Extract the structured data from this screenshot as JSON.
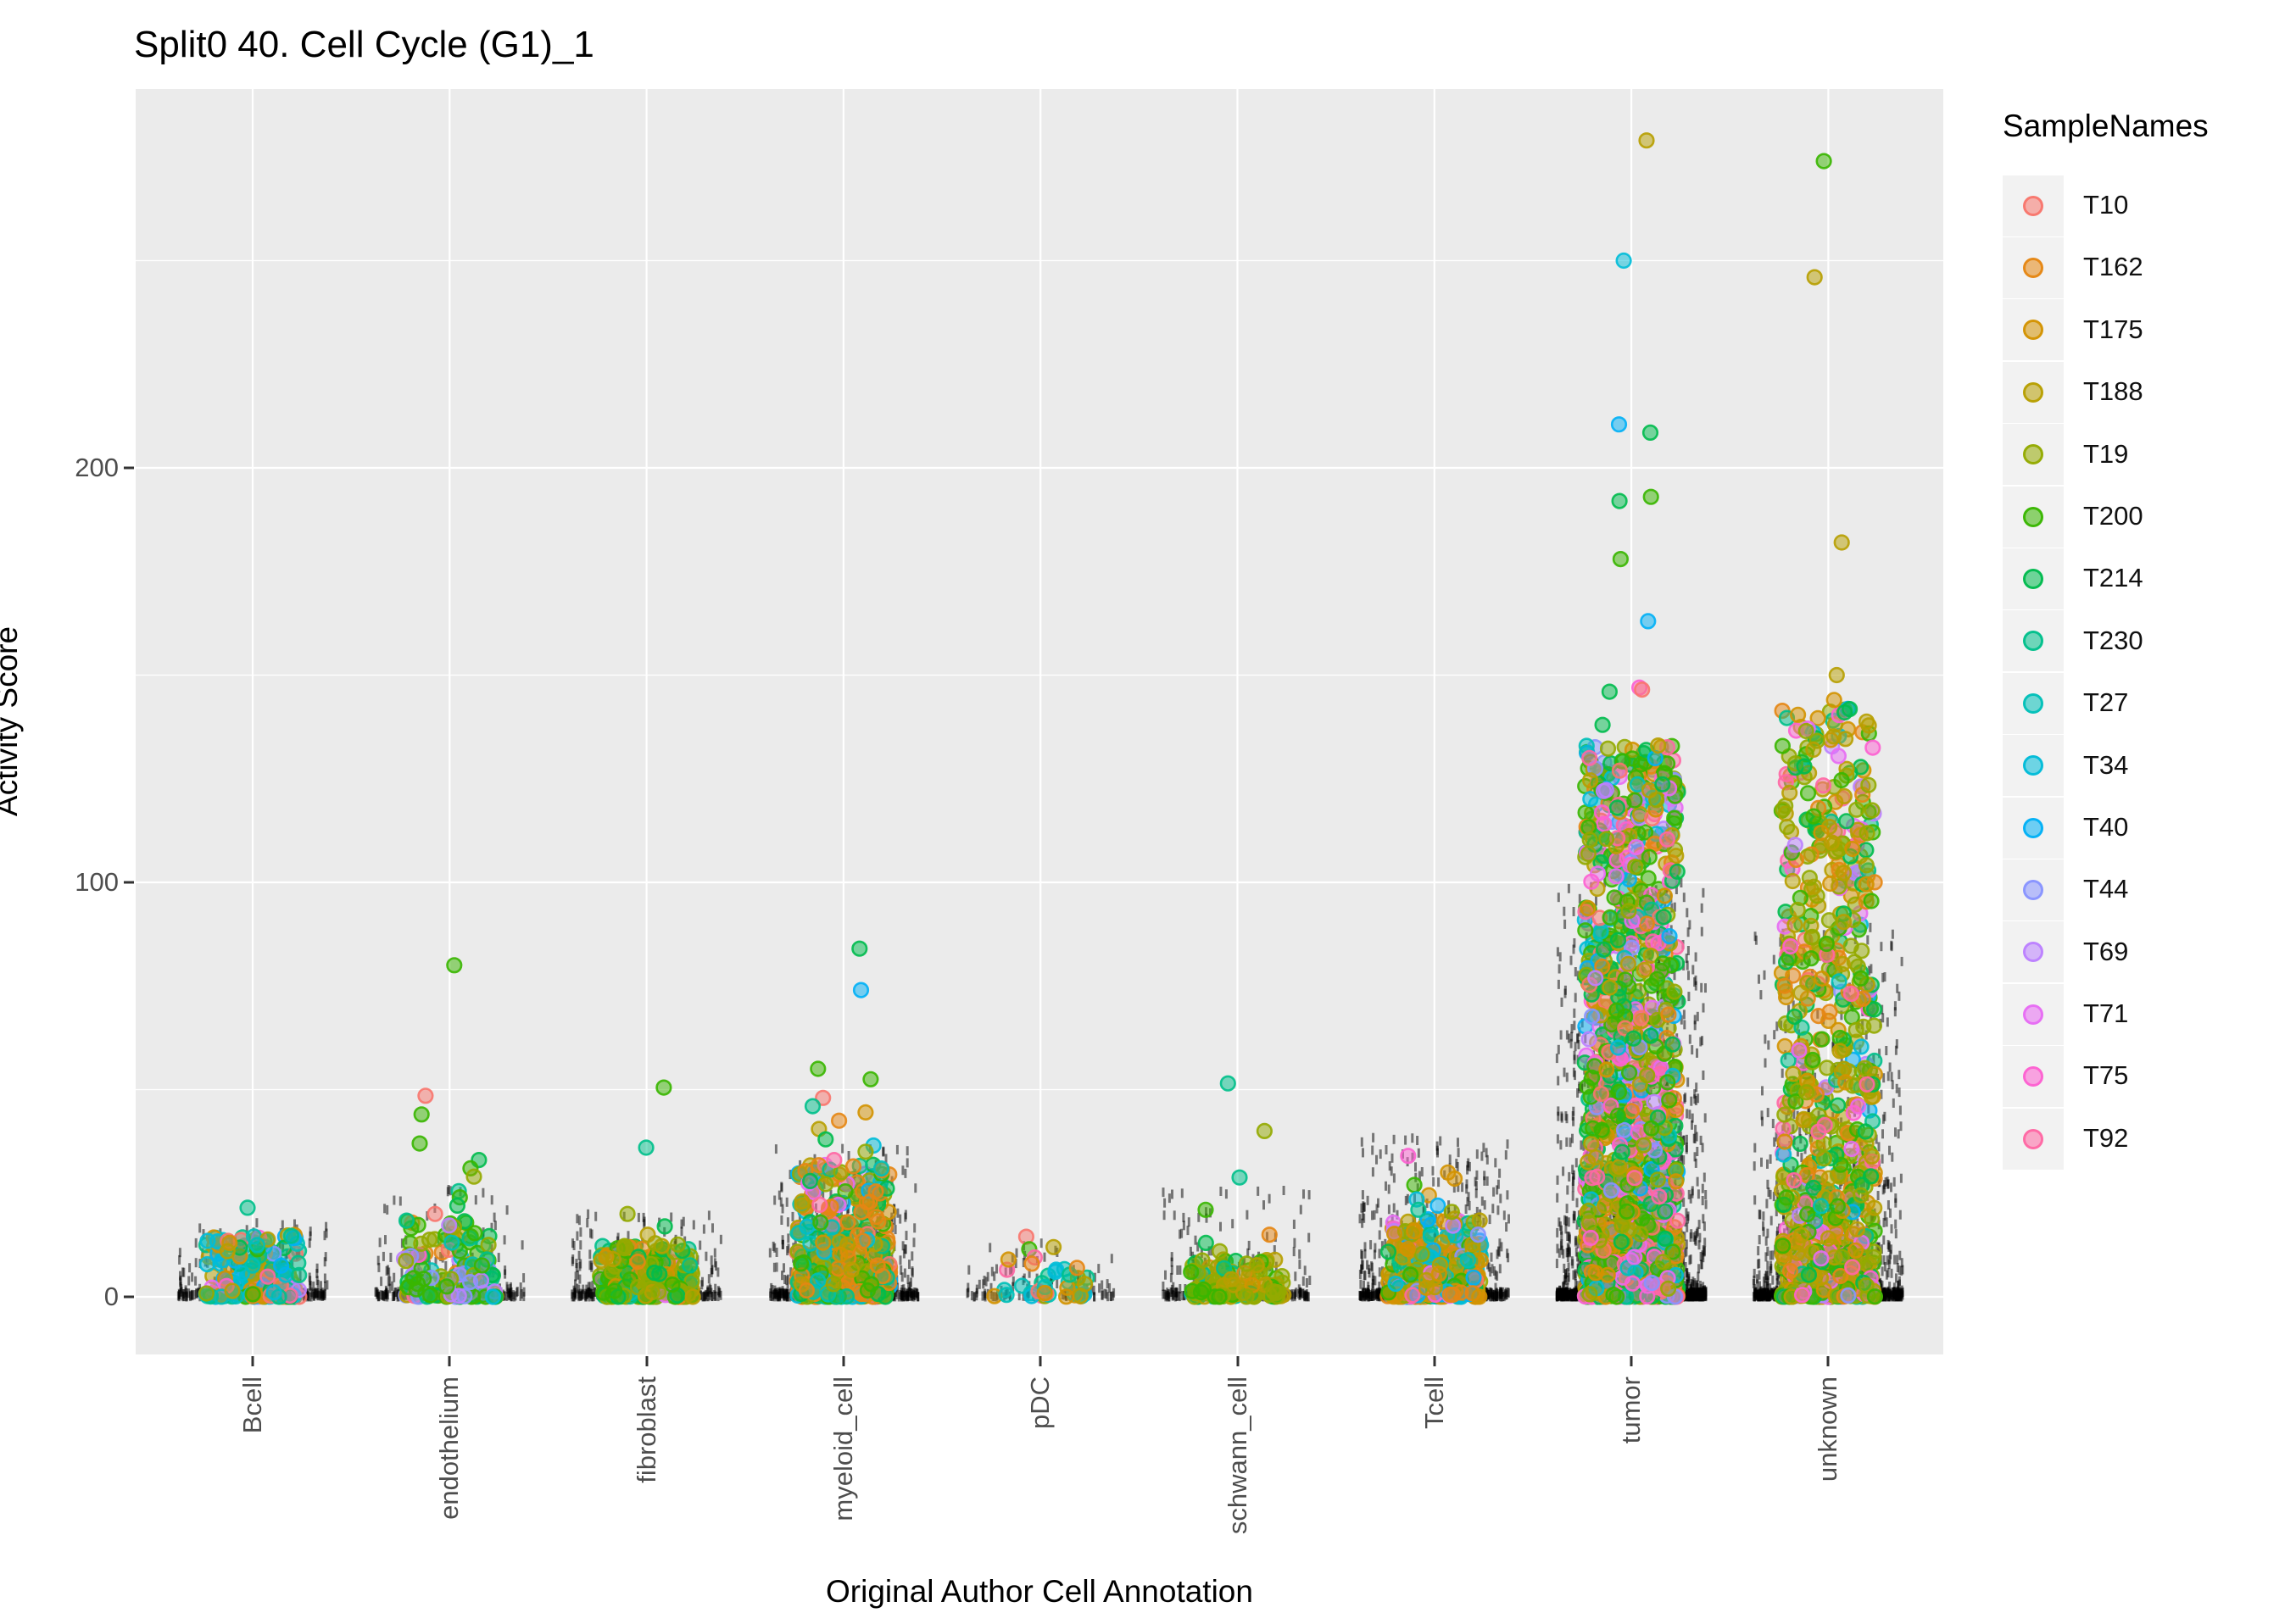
{
  "title": "Split0 40. Cell Cycle (G1)_1",
  "axes": {
    "x_title": "Original Author Cell Annotation",
    "y_title": "Activity Score",
    "y_major_ticks": [
      0,
      100,
      200
    ],
    "y_minor_ticks": [
      50,
      150,
      250
    ],
    "categories": [
      "Bcell",
      "endothelium",
      "fibroblast",
      "myeloid_cell",
      "pDC",
      "schwann_cell",
      "Tcell",
      "tumor",
      "unknown"
    ]
  },
  "legend": {
    "title": "SampleNames",
    "samples": [
      {
        "name": "T10",
        "color": "#F8766D"
      },
      {
        "name": "T162",
        "color": "#E68613"
      },
      {
        "name": "T175",
        "color": "#D39200"
      },
      {
        "name": "T188",
        "color": "#B79F00"
      },
      {
        "name": "T19",
        "color": "#93AA00"
      },
      {
        "name": "T200",
        "color": "#39B600"
      },
      {
        "name": "T214",
        "color": "#00BB4E"
      },
      {
        "name": "T230",
        "color": "#00C08B"
      },
      {
        "name": "T27",
        "color": "#00C0B8"
      },
      {
        "name": "T34",
        "color": "#00BCD8"
      },
      {
        "name": "T40",
        "color": "#00B0F6"
      },
      {
        "name": "T44",
        "color": "#8893FF"
      },
      {
        "name": "T69",
        "color": "#BC81FF"
      },
      {
        "name": "T71",
        "color": "#E76BF3"
      },
      {
        "name": "T75",
        "color": "#FD61D1"
      },
      {
        "name": "T92",
        "color": "#FF67A4"
      }
    ]
  },
  "chart_data": {
    "type": "scatter",
    "subtype": "jittered-strip-plot",
    "title": "Split0 40. Cell Cycle (G1)_1",
    "xlabel": "Original Author Cell Annotation",
    "ylabel": "Activity Score",
    "ylim": [
      -14,
      291
    ],
    "grid": {
      "major": [
        0,
        100,
        200
      ],
      "minor": [
        50,
        150,
        250
      ]
    },
    "legend_position": "right",
    "panel_background": "#EBEBEB",
    "gridline_color": "#FFFFFF",
    "point_style": {
      "fill_opacity": 0.5,
      "stroke_opacity": 0.9,
      "radius_px": 8.3
    },
    "rug_style": {
      "color": "#000000",
      "opacity": 0.5,
      "dash_w": 3,
      "dash_h": 11
    },
    "categories": [
      "Bcell",
      "endothelium",
      "fibroblast",
      "myeloid_cell",
      "pDC",
      "schwann_cell",
      "Tcell",
      "tumor",
      "unknown"
    ],
    "groups": [
      {
        "category": "Bcell",
        "n_points": 220,
        "core_max": 15,
        "density_power": 2.2,
        "sample_weights": {
          "T27": 14,
          "T34": 12,
          "T40": 12,
          "T230": 12,
          "T175": 10,
          "T188": 9,
          "T10": 6,
          "T19": 5,
          "T214": 5,
          "T200": 4,
          "T44": 3,
          "T92": 3,
          "T75": 2,
          "T162": 2,
          "T69": 1,
          "T71": 1
        },
        "outliers": [
          {
            "y": 21.5,
            "sample": "T230"
          },
          {
            "y": 13.5,
            "sample": "T10"
          },
          {
            "y": 13,
            "sample": "T175"
          },
          {
            "y": 12.5,
            "sample": "T27"
          },
          {
            "y": 11,
            "sample": "T188"
          }
        ],
        "rug": {
          "n": 320,
          "max": 18,
          "power": 3
        }
      },
      {
        "category": "endothelium",
        "n_points": 150,
        "core_max": 20,
        "density_power": 2.0,
        "sample_weights": {
          "T200": 30,
          "T214": 15,
          "T19": 12,
          "T230": 8,
          "T69": 8,
          "T188": 7,
          "T44": 4,
          "T162": 4,
          "T10": 4,
          "T27": 3,
          "T34": 2,
          "T75": 1,
          "T92": 1,
          "T71": 1
        },
        "outliers": [
          {
            "y": 80,
            "sample": "T200"
          },
          {
            "y": 48.5,
            "sample": "T10"
          },
          {
            "y": 44,
            "sample": "T200"
          },
          {
            "y": 37,
            "sample": "T200"
          },
          {
            "y": 33,
            "sample": "T214"
          },
          {
            "y": 31,
            "sample": "T200"
          },
          {
            "y": 29,
            "sample": "T19"
          },
          {
            "y": 25.5,
            "sample": "T230"
          },
          {
            "y": 24,
            "sample": "T200"
          },
          {
            "y": 22,
            "sample": "T214"
          },
          {
            "y": 20,
            "sample": "T10"
          }
        ],
        "rug": {
          "n": 230,
          "max": 26,
          "power": 3
        }
      },
      {
        "category": "fibroblast",
        "n_points": 260,
        "core_max": 13,
        "density_power": 2.2,
        "sample_weights": {
          "T19": 34,
          "T188": 20,
          "T200": 15,
          "T214": 10,
          "T230": 8,
          "T162": 4,
          "T175": 4,
          "T27": 2,
          "T92": 1,
          "T69": 1,
          "T71": 1
        },
        "outliers": [
          {
            "y": 50.5,
            "sample": "T200"
          },
          {
            "y": 36,
            "sample": "T230"
          },
          {
            "y": 20,
            "sample": "T19"
          },
          {
            "y": 17,
            "sample": "T214"
          },
          {
            "y": 15,
            "sample": "T188"
          }
        ],
        "rug": {
          "n": 330,
          "max": 20,
          "power": 3
        }
      },
      {
        "category": "myeloid_cell",
        "n_points": 430,
        "core_max": 32,
        "density_power": 2.0,
        "sample_weights": {
          "T162": 27,
          "T19": 12,
          "T200": 12,
          "T188": 10,
          "T175": 8,
          "T230": 7,
          "T214": 6,
          "T27": 5,
          "T34": 4,
          "T40": 3,
          "T10": 3,
          "T92": 2,
          "T71": 1
        },
        "outliers": [
          {
            "y": 84,
            "sample": "T214"
          },
          {
            "y": 74,
            "sample": "T40"
          },
          {
            "y": 55,
            "sample": "T200"
          },
          {
            "y": 52.5,
            "sample": "T200"
          },
          {
            "y": 48,
            "sample": "T10"
          },
          {
            "y": 46,
            "sample": "T230"
          },
          {
            "y": 44.5,
            "sample": "T175"
          },
          {
            "y": 42.5,
            "sample": "T162"
          },
          {
            "y": 40.5,
            "sample": "T188"
          },
          {
            "y": 38,
            "sample": "T214"
          },
          {
            "y": 36.5,
            "sample": "T34"
          },
          {
            "y": 35,
            "sample": "T19"
          },
          {
            "y": 33,
            "sample": "T92"
          }
        ],
        "rug": {
          "n": 600,
          "max": 36,
          "power": 3
        }
      },
      {
        "category": "pDC",
        "n_points": 34,
        "core_max": 7,
        "density_power": 2.0,
        "sample_weights": {
          "T27": 20,
          "T230": 15,
          "T34": 12,
          "T19": 10,
          "T188": 10,
          "T175": 8,
          "T162": 8,
          "T200": 7,
          "T10": 5,
          "T92": 5
        },
        "outliers": [
          {
            "y": 14.5,
            "sample": "T10"
          },
          {
            "y": 12,
            "sample": "T188"
          },
          {
            "y": 11.5,
            "sample": "T200"
          },
          {
            "y": 9.5,
            "sample": "T92"
          },
          {
            "y": 9,
            "sample": "T175"
          },
          {
            "y": 8,
            "sample": "T162"
          }
        ],
        "rug": {
          "n": 130,
          "max": 13,
          "power": 3
        }
      },
      {
        "category": "schwann_cell",
        "n_points": 130,
        "core_max": 9,
        "density_power": 2.2,
        "sample_weights": {
          "T19": 40,
          "T188": 20,
          "T200": 18,
          "T214": 8,
          "T230": 6,
          "T162": 4,
          "T175": 2,
          "T27": 2
        },
        "outliers": [
          {
            "y": 51.5,
            "sample": "T230"
          },
          {
            "y": 40,
            "sample": "T19"
          },
          {
            "y": 28.8,
            "sample": "T230"
          },
          {
            "y": 21,
            "sample": "T200"
          },
          {
            "y": 15,
            "sample": "T162"
          },
          {
            "y": 13,
            "sample": "T214"
          },
          {
            "y": 11,
            "sample": "T19"
          }
        ],
        "rug": {
          "n": 300,
          "max": 26,
          "power": 3
        }
      },
      {
        "category": "Tcell",
        "n_points": 330,
        "core_max": 19,
        "density_power": 2.0,
        "sample_weights": {
          "T175": 20,
          "T188": 17,
          "T162": 11,
          "T27": 10,
          "T230": 8,
          "T34": 7,
          "T40": 6,
          "T19": 5,
          "T200": 4,
          "T214": 3,
          "T69": 2,
          "T71": 2,
          "T75": 2,
          "T92": 2,
          "T44": 2,
          "T10": 2
        },
        "outliers": [
          {
            "y": 34,
            "sample": "T75"
          },
          {
            "y": 30,
            "sample": "T175"
          },
          {
            "y": 28.5,
            "sample": "T175"
          },
          {
            "y": 27,
            "sample": "T200"
          },
          {
            "y": 24.5,
            "sample": "T175"
          },
          {
            "y": 23.5,
            "sample": "T34"
          },
          {
            "y": 22,
            "sample": "T40"
          },
          {
            "y": 21,
            "sample": "T230"
          },
          {
            "y": 20.5,
            "sample": "T19"
          }
        ],
        "rug": {
          "n": 800,
          "max": 40,
          "power": 3.2
        }
      },
      {
        "category": "tumor",
        "n_points": 1350,
        "core_max": 133,
        "density_power": 2.1,
        "sample_weights": {
          "T200": 19,
          "T214": 13,
          "T19": 10,
          "T188": 10,
          "T92": 8,
          "T75": 7,
          "T162": 6,
          "T175": 6,
          "T71": 4,
          "T69": 4,
          "T44": 4,
          "T34": 3,
          "T40": 3,
          "T10": 3,
          "T230": 2,
          "T27": 2
        },
        "outliers": [
          {
            "y": 279,
            "sample": "T188"
          },
          {
            "y": 250,
            "sample": "T34"
          },
          {
            "y": 210.5,
            "sample": "T40"
          },
          {
            "y": 208.5,
            "sample": "T214"
          },
          {
            "y": 193,
            "sample": "T200"
          },
          {
            "y": 192,
            "sample": "T214"
          },
          {
            "y": 178,
            "sample": "T200"
          },
          {
            "y": 163,
            "sample": "T40"
          },
          {
            "y": 147,
            "sample": "T75"
          },
          {
            "y": 146.5,
            "sample": "T10"
          },
          {
            "y": 146,
            "sample": "T214"
          },
          {
            "y": 138,
            "sample": "T214"
          },
          {
            "y": 133,
            "sample": "T188"
          }
        ],
        "rug": {
          "n": 2200,
          "max": 100,
          "power": 3.5
        }
      },
      {
        "category": "unknown",
        "n_points": 780,
        "core_max": 142,
        "density_power": 2.1,
        "sample_weights": {
          "T19": 20,
          "T188": 17,
          "T200": 16,
          "T214": 12,
          "T162": 9,
          "T175": 8,
          "T230": 4,
          "T92": 4,
          "T75": 4,
          "T71": 3,
          "T69": 2,
          "T44": 1,
          "T34": 1,
          "T27": 1,
          "T40": 1,
          "T10": 1
        },
        "outliers": [
          {
            "y": 274,
            "sample": "T200"
          },
          {
            "y": 246,
            "sample": "T188"
          },
          {
            "y": 182,
            "sample": "T188"
          },
          {
            "y": 150,
            "sample": "T188"
          },
          {
            "y": 144,
            "sample": "T175"
          },
          {
            "y": 141,
            "sample": "T214"
          },
          {
            "y": 132,
            "sample": "T188"
          },
          {
            "y": 128,
            "sample": "T214"
          }
        ],
        "rug": {
          "n": 1400,
          "max": 90,
          "power": 3.8
        }
      }
    ]
  }
}
